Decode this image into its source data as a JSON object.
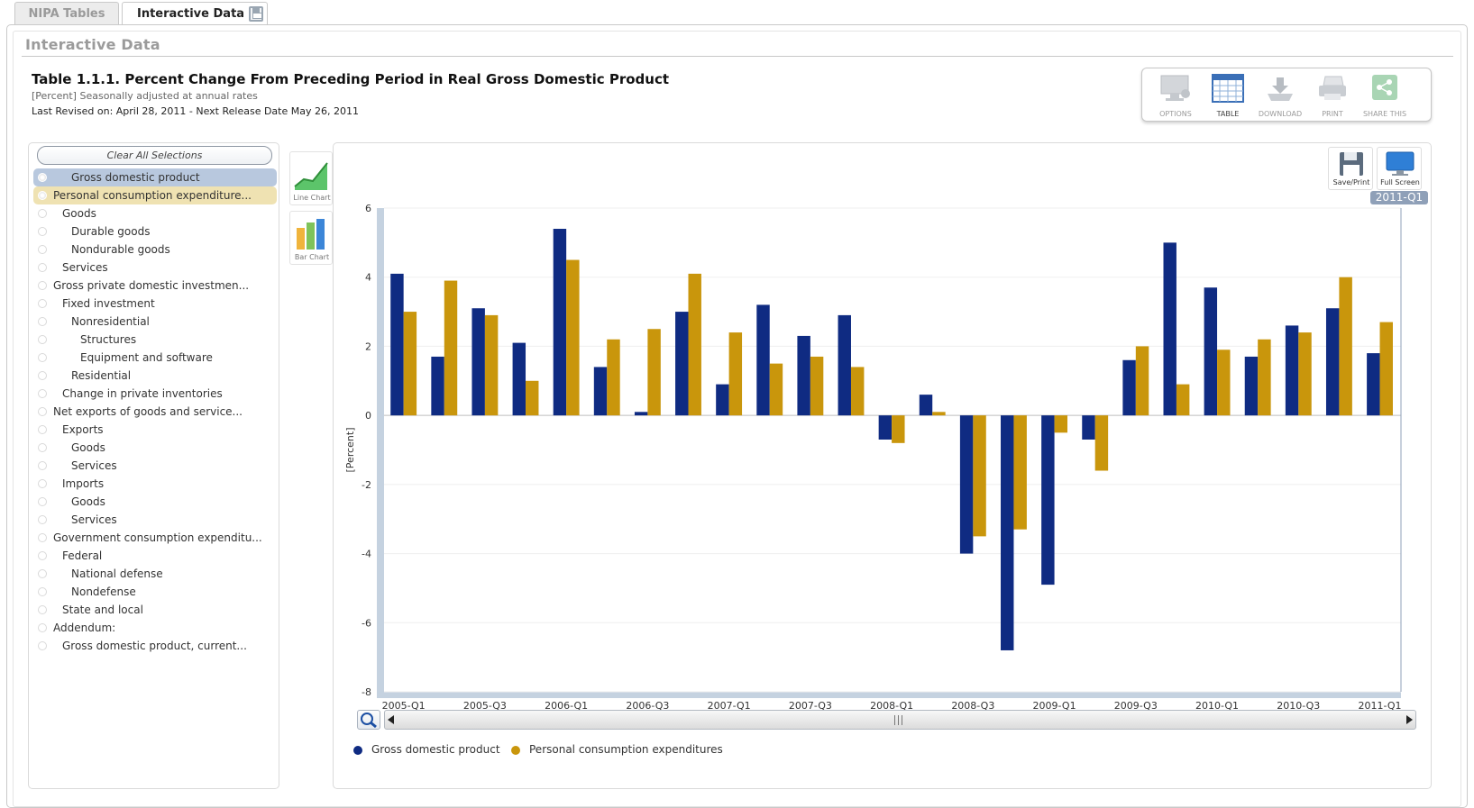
{
  "tabs": [
    {
      "label": "NIPA Tables",
      "active": false
    },
    {
      "label": "Interactive Data",
      "active": true
    }
  ],
  "section_title": "Interactive Data",
  "table": {
    "title": "Table 1.1.1. Percent Change From Preceding Period in Real Gross Domestic Product",
    "subtitle": "[Percent] Seasonally adjusted at annual rates",
    "revised": "Last Revised on: April 28, 2011 - Next Release Date May 26, 2011"
  },
  "toolbar": {
    "options": "OPTIONS",
    "table": "TABLE",
    "download": "DOWNLOAD",
    "print": "PRINT",
    "share": "SHARE THIS"
  },
  "clear_all": "Clear All Selections",
  "series_list": [
    {
      "label": "Gross domestic product",
      "indent": 2,
      "selected": "blue"
    },
    {
      "label": "Personal consumption expenditure...",
      "indent": 0,
      "selected": "gold"
    },
    {
      "label": "Goods",
      "indent": 1,
      "selected": ""
    },
    {
      "label": "Durable goods",
      "indent": 2,
      "selected": ""
    },
    {
      "label": "Nondurable goods",
      "indent": 2,
      "selected": ""
    },
    {
      "label": "Services",
      "indent": 1,
      "selected": ""
    },
    {
      "label": "Gross private domestic investmen...",
      "indent": 0,
      "selected": ""
    },
    {
      "label": "Fixed investment",
      "indent": 1,
      "selected": ""
    },
    {
      "label": "Nonresidential",
      "indent": 2,
      "selected": ""
    },
    {
      "label": "Structures",
      "indent": 3,
      "selected": ""
    },
    {
      "label": "Equipment and software",
      "indent": 3,
      "selected": ""
    },
    {
      "label": "Residential",
      "indent": 2,
      "selected": ""
    },
    {
      "label": "Change in private inventories",
      "indent": 1,
      "selected": ""
    },
    {
      "label": "Net exports of goods and service...",
      "indent": 0,
      "selected": ""
    },
    {
      "label": "Exports",
      "indent": 1,
      "selected": ""
    },
    {
      "label": "Goods",
      "indent": 2,
      "selected": ""
    },
    {
      "label": "Services",
      "indent": 2,
      "selected": ""
    },
    {
      "label": "Imports",
      "indent": 1,
      "selected": ""
    },
    {
      "label": "Goods",
      "indent": 2,
      "selected": ""
    },
    {
      "label": "Services",
      "indent": 2,
      "selected": ""
    },
    {
      "label": "Government consumption expenditu...",
      "indent": 0,
      "selected": ""
    },
    {
      "label": "Federal",
      "indent": 1,
      "selected": ""
    },
    {
      "label": "National defense",
      "indent": 2,
      "selected": ""
    },
    {
      "label": "Nondefense",
      "indent": 2,
      "selected": ""
    },
    {
      "label": "State and local",
      "indent": 1,
      "selected": ""
    },
    {
      "label": "Addendum:",
      "indent": 0,
      "selected": ""
    },
    {
      "label": "Gross domestic product, current...",
      "indent": 1,
      "selected": ""
    }
  ],
  "chart_types": {
    "line": "Line Chart",
    "bar": "Bar Chart"
  },
  "chart_buttons": {
    "save_print": "Save/Print",
    "full_screen": "Full Screen"
  },
  "period_badge": "2011-Q1",
  "colors": {
    "gdp": "#0f2b82",
    "pce": "#c9960c",
    "selected_gdp_bg": "#b8c8de",
    "selected_pce_bg": "#efe2b2",
    "axis": "#c5d2e0"
  },
  "chart_data": {
    "type": "bar",
    "title": "",
    "xlabel": "",
    "ylabel": "[Percent]",
    "ylim": [
      -8,
      6
    ],
    "yticks": [
      -8,
      -6,
      -4,
      -2,
      0,
      2,
      4,
      6
    ],
    "grid": true,
    "legend_position": "bottom-left",
    "categories": [
      "2005-Q1",
      "2005-Q2",
      "2005-Q3",
      "2005-Q4",
      "2006-Q1",
      "2006-Q2",
      "2006-Q3",
      "2006-Q4",
      "2007-Q1",
      "2007-Q2",
      "2007-Q3",
      "2007-Q4",
      "2008-Q1",
      "2008-Q2",
      "2008-Q3",
      "2008-Q4",
      "2009-Q1",
      "2009-Q2",
      "2009-Q3",
      "2009-Q4",
      "2010-Q1",
      "2010-Q2",
      "2010-Q3",
      "2010-Q4",
      "2011-Q1"
    ],
    "tick_labels": [
      "2005-Q1",
      "2005-Q3",
      "2006-Q1",
      "2006-Q3",
      "2007-Q1",
      "2007-Q3",
      "2008-Q1",
      "2008-Q3",
      "2009-Q1",
      "2009-Q3",
      "2010-Q1",
      "2010-Q3",
      "2011-Q1"
    ],
    "series": [
      {
        "name": "Gross domestic product",
        "color": "#0f2b82",
        "values": [
          4.1,
          1.7,
          3.1,
          2.1,
          5.4,
          1.4,
          0.1,
          3.0,
          0.9,
          3.2,
          2.3,
          2.9,
          -0.7,
          0.6,
          -4.0,
          -6.8,
          -4.9,
          -0.7,
          1.6,
          5.0,
          3.7,
          1.7,
          2.6,
          3.1,
          1.8
        ]
      },
      {
        "name": "Personal consumption expenditures",
        "color": "#c9960c",
        "values": [
          3.0,
          3.9,
          2.9,
          1.0,
          4.5,
          2.2,
          2.5,
          4.1,
          2.4,
          1.5,
          1.7,
          1.4,
          -0.8,
          0.1,
          -3.5,
          -3.3,
          -0.5,
          -1.6,
          2.0,
          0.9,
          1.9,
          2.2,
          2.4,
          4.0,
          2.7
        ]
      }
    ]
  }
}
